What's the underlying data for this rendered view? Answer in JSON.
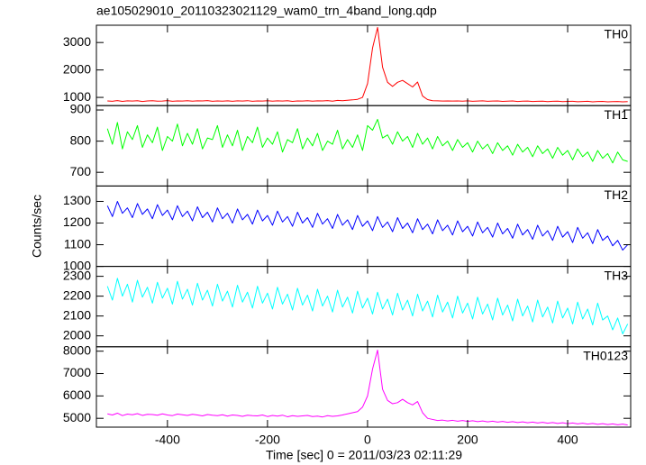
{
  "chart_data": {
    "type": "line",
    "title": "ae105029010_20110323021129_wam0_trn_4band_long.qdp",
    "xlabel": "Time [sec] 0 = 2011/03/23 02:11:29",
    "ylabel": "Counts/sec",
    "xlim": [
      -542,
      526
    ],
    "xticks": [
      -400,
      -200,
      0,
      200,
      400
    ],
    "x": [
      -520,
      -510,
      -500,
      -490,
      -480,
      -470,
      -460,
      -450,
      -440,
      -430,
      -420,
      -410,
      -400,
      -390,
      -380,
      -370,
      -360,
      -350,
      -340,
      -330,
      -320,
      -310,
      -300,
      -290,
      -280,
      -270,
      -260,
      -250,
      -240,
      -230,
      -220,
      -210,
      -200,
      -190,
      -180,
      -170,
      -160,
      -150,
      -140,
      -130,
      -120,
      -110,
      -100,
      -90,
      -80,
      -70,
      -60,
      -50,
      -40,
      -30,
      -20,
      -10,
      0,
      10,
      20,
      30,
      40,
      50,
      60,
      70,
      80,
      90,
      100,
      110,
      120,
      130,
      140,
      150,
      160,
      170,
      180,
      190,
      200,
      210,
      220,
      230,
      240,
      250,
      260,
      270,
      280,
      290,
      300,
      310,
      320,
      330,
      340,
      350,
      360,
      370,
      380,
      390,
      400,
      410,
      420,
      430,
      440,
      450,
      460,
      470,
      480,
      490,
      500,
      510,
      520
    ],
    "series": [
      {
        "name": "TH0",
        "color": "#ff0000",
        "ylim": [
          700,
          3630
        ],
        "yticks": [
          1000,
          2000,
          3000
        ],
        "values": [
          870,
          860,
          885,
          855,
          875,
          865,
          880,
          850,
          870,
          878,
          862,
          868,
          885,
          858,
          872,
          866,
          879,
          861,
          874,
          869,
          883,
          857,
          871,
          864,
          876,
          860,
          873,
          867,
          881,
          859,
          870,
          865,
          878,
          862,
          874,
          868,
          880,
          856,
          872,
          866,
          877,
          861,
          875,
          870,
          882,
          864,
          890,
          880,
          895,
          910,
          930,
          1000,
          1500,
          2800,
          3550,
          2100,
          1550,
          1400,
          1550,
          1620,
          1500,
          1380,
          1560,
          1050,
          920,
          880,
          875,
          868,
          872,
          865,
          870,
          862,
          874,
          860,
          868,
          873,
          858,
          866,
          870,
          855,
          864,
          869,
          852,
          861,
          866,
          850,
          860,
          863,
          848,
          858,
          862,
          845,
          855,
          860,
          843,
          852,
          857,
          840,
          850,
          855,
          838,
          848,
          852,
          836,
          845
        ]
      },
      {
        "name": "TH1",
        "color": "#00ff00",
        "ylim": [
          656,
          914
        ],
        "yticks": [
          700,
          800,
          900
        ],
        "values": [
          840,
          790,
          860,
          775,
          830,
          805,
          850,
          780,
          820,
          795,
          845,
          770,
          815,
          800,
          855,
          785,
          825,
          790,
          840,
          775,
          810,
          805,
          850,
          780,
          820,
          785,
          835,
          770,
          815,
          795,
          845,
          780,
          810,
          790,
          830,
          765,
          805,
          795,
          840,
          775,
          810,
          785,
          825,
          770,
          800,
          790,
          835,
          775,
          805,
          780,
          820,
          770,
          850,
          835,
          870,
          810,
          820,
          790,
          830,
          800,
          815,
          780,
          825,
          790,
          810,
          775,
          815,
          785,
          800,
          770,
          805,
          780,
          795,
          765,
          800,
          775,
          790,
          760,
          795,
          770,
          785,
          755,
          790,
          765,
          780,
          750,
          785,
          760,
          775,
          745,
          780,
          755,
          770,
          740,
          775,
          750,
          765,
          735,
          770,
          745,
          760,
          730,
          765,
          740,
          735
        ]
      },
      {
        "name": "TH2",
        "color": "#0000ff",
        "ylim": [
          1000,
          1371
        ],
        "yticks": [
          1000,
          1100,
          1200,
          1300
        ],
        "values": [
          1280,
          1230,
          1300,
          1245,
          1270,
          1225,
          1290,
          1240,
          1265,
          1220,
          1285,
          1235,
          1260,
          1215,
          1280,
          1230,
          1255,
          1210,
          1275,
          1225,
          1250,
          1205,
          1270,
          1220,
          1245,
          1200,
          1265,
          1215,
          1240,
          1195,
          1260,
          1210,
          1235,
          1190,
          1255,
          1205,
          1230,
          1185,
          1250,
          1200,
          1225,
          1180,
          1245,
          1195,
          1220,
          1175,
          1240,
          1190,
          1215,
          1170,
          1235,
          1185,
          1210,
          1165,
          1230,
          1180,
          1205,
          1160,
          1225,
          1175,
          1200,
          1155,
          1220,
          1170,
          1195,
          1150,
          1215,
          1165,
          1190,
          1145,
          1210,
          1160,
          1185,
          1140,
          1205,
          1155,
          1180,
          1135,
          1200,
          1150,
          1175,
          1130,
          1195,
          1145,
          1170,
          1125,
          1190,
          1140,
          1165,
          1120,
          1185,
          1135,
          1160,
          1110,
          1180,
          1130,
          1155,
          1105,
          1170,
          1120,
          1140,
          1095,
          1120,
          1075,
          1100
        ]
      },
      {
        "name": "TH3",
        "color": "#00ffff",
        "ylim": [
          1945,
          2350
        ],
        "yticks": [
          2000,
          2100,
          2200,
          2300
        ],
        "values": [
          2250,
          2180,
          2290,
          2200,
          2260,
          2170,
          2280,
          2195,
          2245,
          2165,
          2270,
          2190,
          2240,
          2160,
          2275,
          2185,
          2235,
          2155,
          2265,
          2180,
          2230,
          2150,
          2260,
          2175,
          2225,
          2145,
          2255,
          2170,
          2220,
          2140,
          2250,
          2165,
          2215,
          2135,
          2245,
          2160,
          2210,
          2130,
          2240,
          2155,
          2205,
          2125,
          2235,
          2150,
          2200,
          2120,
          2230,
          2145,
          2195,
          2115,
          2225,
          2140,
          2190,
          2110,
          2220,
          2135,
          2185,
          2105,
          2215,
          2130,
          2180,
          2100,
          2210,
          2125,
          2175,
          2095,
          2205,
          2120,
          2170,
          2090,
          2200,
          2115,
          2165,
          2085,
          2195,
          2110,
          2160,
          2080,
          2190,
          2105,
          2155,
          2075,
          2185,
          2100,
          2150,
          2070,
          2180,
          2095,
          2145,
          2065,
          2175,
          2090,
          2140,
          2060,
          2170,
          2085,
          2135,
          2055,
          2165,
          2080,
          2100,
          2030,
          2090,
          2010,
          2060
        ]
      },
      {
        "name": "TH0123",
        "color": "#ff00ff",
        "ylim": [
          4605,
          8197
        ],
        "yticks": [
          5000,
          6000,
          7000,
          8000
        ],
        "values": [
          5200,
          5150,
          5230,
          5120,
          5190,
          5160,
          5210,
          5130,
          5180,
          5170,
          5140,
          5200,
          5150,
          5120,
          5190,
          5160,
          5130,
          5180,
          5150,
          5110,
          5170,
          5140,
          5120,
          5160,
          5100,
          5150,
          5130,
          5090,
          5140,
          5120,
          5110,
          5150,
          5080,
          5130,
          5100,
          5140,
          5070,
          5120,
          5090,
          5110,
          5130,
          5080,
          5100,
          5060,
          5120,
          5090,
          5110,
          5150,
          5200,
          5250,
          5300,
          5500,
          6000,
          7200,
          8050,
          6300,
          5800,
          5650,
          5700,
          5850,
          5700,
          5600,
          5750,
          5250,
          5000,
          4950,
          4900,
          4920,
          4880,
          4910,
          4870,
          4900,
          4860,
          4890,
          4850,
          4880,
          4840,
          4870,
          4830,
          4860,
          4820,
          4850,
          4810,
          4840,
          4800,
          4830,
          4790,
          4820,
          4780,
          4810,
          4770,
          4800,
          4760,
          4790,
          4750,
          4780,
          4740,
          4770,
          4730,
          4760,
          4720,
          4750,
          4710,
          4740,
          4700
        ]
      }
    ]
  }
}
